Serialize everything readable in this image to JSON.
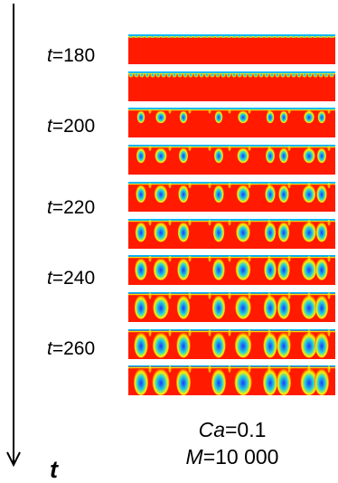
{
  "time_axis": {
    "symbol": "t",
    "labels": [
      {
        "prefix": "t",
        "value": "=180"
      },
      {
        "prefix": "t",
        "value": "=200"
      },
      {
        "prefix": "t",
        "value": "=220"
      },
      {
        "prefix": "t",
        "value": "=240"
      },
      {
        "prefix": "t",
        "value": "=260"
      }
    ]
  },
  "snapshots": {
    "count": 10,
    "stages": [
      0,
      0.12,
      0.28,
      0.42,
      0.55,
      0.66,
      0.76,
      0.85,
      0.93,
      1.0
    ],
    "colors": {
      "background": "#ff1a00",
      "film": "#00b7ff",
      "drop_core": "#1a3cff",
      "drop_ring": "#22d1d9",
      "drop_edge": "#ffef00"
    }
  },
  "parameters": {
    "ca": {
      "symbol": "Ca",
      "value": "=0.1"
    },
    "m": {
      "symbol": "M",
      "value": "=10 000"
    }
  }
}
